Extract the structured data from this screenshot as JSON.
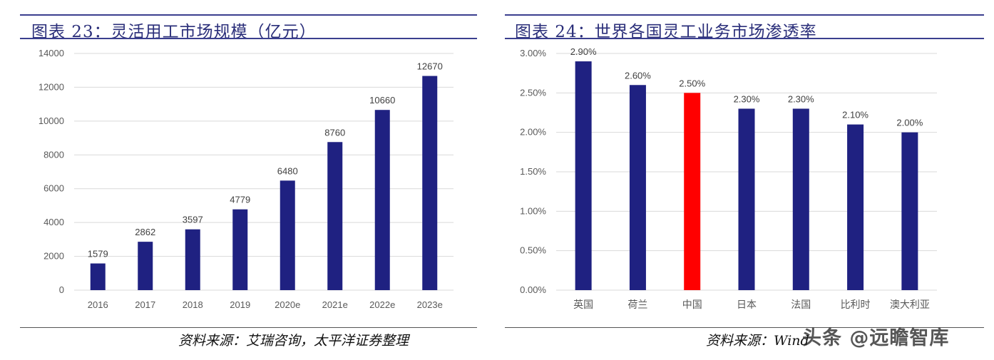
{
  "chart_data": [
    {
      "type": "bar",
      "title": "图表 23：灵活用工市场规模（亿元）",
      "categories": [
        "2016",
        "2017",
        "2018",
        "2019",
        "2020e",
        "2021e",
        "2022e",
        "2023e"
      ],
      "values": [
        1579,
        2862,
        3597,
        4779,
        6480,
        8760,
        10660,
        12670
      ],
      "data_labels": [
        "1579",
        "2862",
        "3597",
        "4779",
        "6480",
        "8760",
        "10660",
        "12670"
      ],
      "yticks": [
        "0",
        "2000",
        "4000",
        "6000",
        "8000",
        "10000",
        "12000",
        "14000"
      ],
      "ylim": [
        0,
        14000
      ],
      "grid": true,
      "legend": "none",
      "bar_color": "#1f2181",
      "source": "资料来源：艾瑞咨询，太平洋证券整理"
    },
    {
      "type": "bar",
      "title": "图表 24：世界各国灵工业务市场渗透率",
      "categories": [
        "英国",
        "荷兰",
        "中国",
        "日本",
        "法国",
        "比利时",
        "澳大利亚"
      ],
      "values": [
        2.9,
        2.6,
        2.5,
        2.3,
        2.3,
        2.1,
        2.0
      ],
      "data_labels": [
        "2.90%",
        "2.60%",
        "2.50%",
        "2.30%",
        "2.30%",
        "2.10%",
        "2.00%"
      ],
      "yticks": [
        "0.00%",
        "0.50%",
        "1.00%",
        "1.50%",
        "2.00%",
        "2.50%",
        "3.00%"
      ],
      "ylim": [
        0,
        3.0
      ],
      "grid": true,
      "legend": "none",
      "bar_color": "#1f2181",
      "highlight_color": "#ff0000",
      "highlight_index": 2,
      "source": "资料来源：Wind"
    }
  ],
  "watermark": "头条 @远瞻智库"
}
